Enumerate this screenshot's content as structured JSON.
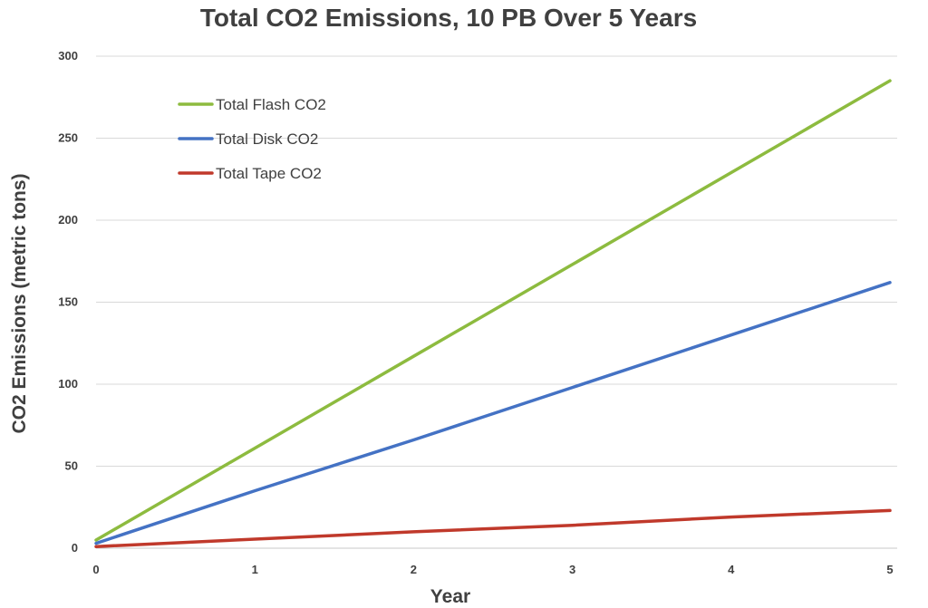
{
  "chart_data": {
    "type": "line",
    "title": "Total CO2 Emissions, 10 PB Over 5 Years",
    "xlabel": "Year",
    "ylabel": "CO2 Emissions (metric tons)",
    "x": [
      0,
      1,
      2,
      3,
      4,
      5
    ],
    "x_ticks": [
      "0",
      "1",
      "2",
      "3",
      "4",
      "5"
    ],
    "y_ticks": [
      "0",
      "50",
      "100",
      "150",
      "200",
      "250",
      "300"
    ],
    "xlim": [
      0,
      5
    ],
    "ylim": [
      0,
      300
    ],
    "grid": "horizontal",
    "legend_position": "top-left",
    "series": [
      {
        "name": "Total Flash CO2",
        "color": "#8DBB3F",
        "values": [
          5,
          61,
          117,
          173,
          229,
          285
        ]
      },
      {
        "name": "Total Disk CO2",
        "color": "#4472C4",
        "values": [
          3,
          35,
          66,
          98,
          130,
          162
        ]
      },
      {
        "name": "Total Tape CO2",
        "color": "#C0392B",
        "values": [
          1,
          5.5,
          10,
          14,
          19,
          23
        ]
      }
    ]
  }
}
